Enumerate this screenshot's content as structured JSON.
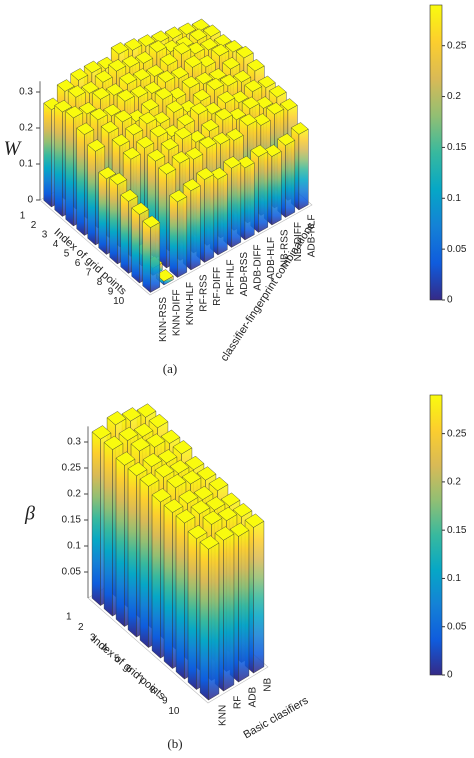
{
  "chart_data": [
    {
      "type": "bar3d",
      "caption": "(a)",
      "zlabel": "W",
      "xlabel": "Index of grid points",
      "ylabel": "classifier-fingerprint combinations",
      "x_categories": [
        1,
        2,
        3,
        4,
        5,
        6,
        7,
        8,
        9,
        10
      ],
      "y_categories": [
        "KNN-RSS",
        "KNN-DIFF",
        "KNN-HLF",
        "RF-RSS",
        "RF-DIFF",
        "RF-HLF",
        "ADB-RSS",
        "ADB-DIFF",
        "ADB-HLF",
        "NB-RSS",
        "NB-DIFF",
        "ADB-HLF"
      ],
      "values": [
        [
          0.27,
          0.3,
          0.31,
          0.31,
          0.3,
          0.32,
          0.31,
          0.3,
          0.29,
          0.28,
          0.27,
          0.26
        ],
        [
          0.29,
          0.31,
          0.3,
          0.31,
          0.32,
          0.31,
          0.3,
          0.31,
          0.29,
          0.28,
          0.28,
          0.27
        ],
        [
          0.3,
          0.29,
          0.31,
          0.3,
          0.31,
          0.3,
          0.29,
          0.3,
          0.31,
          0.29,
          0.28,
          0.27
        ],
        [
          0.28,
          0.3,
          0.29,
          0.31,
          0.3,
          0.29,
          0.3,
          0.29,
          0.3,
          0.28,
          0.29,
          0.28
        ],
        [
          0.26,
          0.29,
          0.3,
          0.28,
          0.29,
          0.3,
          0.28,
          0.29,
          0.28,
          0.27,
          0.28,
          0.29
        ],
        [
          0.21,
          0.28,
          0.29,
          0.3,
          0.28,
          0.29,
          0.27,
          0.28,
          0.29,
          0.28,
          0.27,
          0.28
        ],
        [
          0.22,
          0.27,
          0.28,
          0.29,
          0.27,
          0.28,
          0.29,
          0.27,
          0.28,
          0.26,
          0.27,
          0.26
        ],
        [
          0.2,
          0.03,
          0.27,
          0.28,
          0.29,
          0.26,
          0.27,
          0.28,
          0.26,
          0.27,
          0.25,
          0.26
        ],
        [
          0.19,
          0.02,
          0.26,
          0.27,
          0.26,
          0.27,
          0.26,
          0.25,
          0.27,
          0.25,
          0.26,
          0.25
        ],
        [
          0.18,
          0.01,
          0.21,
          0.22,
          0.23,
          0.21,
          0.22,
          0.2,
          0.21,
          0.19,
          0.2,
          0.21
        ]
      ],
      "zlim": [
        0,
        0.33
      ],
      "zticks": [
        0,
        0.1,
        0.2,
        0.3
      ],
      "colormap": [
        "#352a87",
        "#0f5cdd",
        "#1481d6",
        "#06a7c6",
        "#38b99e",
        "#92bf73",
        "#d9ba56",
        "#fcce2e",
        "#f9fb0e"
      ],
      "colorbar": {
        "clim": [
          0,
          0.29
        ],
        "ticks": [
          0,
          0.05,
          0.1,
          0.15,
          0.2,
          0.25
        ]
      }
    },
    {
      "type": "bar3d",
      "caption": "(b)",
      "zlabel": "β",
      "xlabel": "Index of grid points",
      "ylabel": "Basic clasifiers",
      "x_categories": [
        1,
        2,
        3,
        4,
        5,
        6,
        7,
        8,
        9,
        10
      ],
      "y_categories": [
        "KNN",
        "RF",
        "ADB",
        "NB"
      ],
      "values": [
        [
          0.32,
          0.33,
          0.32,
          0.31
        ],
        [
          0.32,
          0.32,
          0.31,
          0.31
        ],
        [
          0.31,
          0.32,
          0.31,
          0.3
        ],
        [
          0.31,
          0.31,
          0.3,
          0.3
        ],
        [
          0.31,
          0.31,
          0.3,
          0.29
        ],
        [
          0.3,
          0.31,
          0.3,
          0.29
        ],
        [
          0.3,
          0.3,
          0.29,
          0.29
        ],
        [
          0.3,
          0.3,
          0.29,
          0.28
        ],
        [
          0.29,
          0.3,
          0.29,
          0.28
        ],
        [
          0.29,
          0.29,
          0.28,
          0.28
        ]
      ],
      "zlim": [
        0,
        0.33
      ],
      "zticks": [
        0.05,
        0.1,
        0.15,
        0.2,
        0.25,
        0.3
      ],
      "colormap": [
        "#352a87",
        "#0f5cdd",
        "#1481d6",
        "#06a7c6",
        "#38b99e",
        "#92bf73",
        "#d9ba56",
        "#fcce2e",
        "#f9fb0e"
      ],
      "colorbar": {
        "clim": [
          0,
          0.29
        ],
        "ticks": [
          0,
          0.05,
          0.1,
          0.15,
          0.2,
          0.25
        ]
      }
    }
  ]
}
